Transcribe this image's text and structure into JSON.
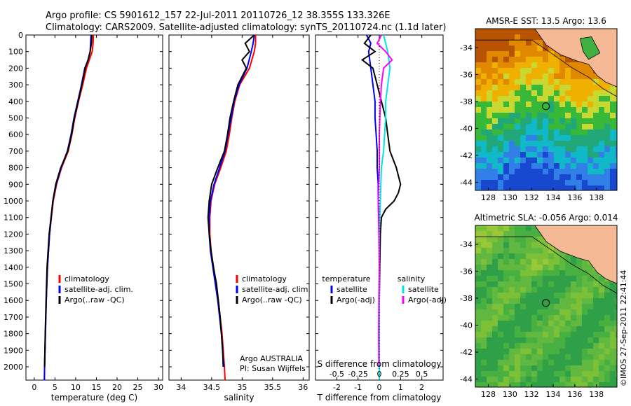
{
  "header": {
    "line1": "Argo profile: CS 5901612_157 22-Jul-2011 20110726_12 38.355S 133.326E",
    "line2": "Climatology: CARS2009. Satellite-adjusted climatology: synTS_20110724.nc (1.1d later)"
  },
  "side_label": "©IMOS 27-Sep-2011 22:41:44",
  "colors": {
    "climatology": "#ff0000",
    "satellite": "#0000ff",
    "argo": "#000000",
    "sat_sal": "#00e5e5",
    "argo_sal": "#ff00ff",
    "land": "#f5b995"
  },
  "chart_data": [
    {
      "type": "line",
      "id": "temperature",
      "xlabel": "temperature (deg C)",
      "xlim": [
        -2,
        31
      ],
      "ylim": [
        2080,
        0
      ],
      "xticks": [
        "0",
        "5",
        "10",
        "15",
        "20",
        "25",
        "30"
      ],
      "xtick_values": [
        0,
        5,
        10,
        15,
        20,
        25,
        30
      ],
      "yticks": [
        "0",
        "100",
        "200",
        "300",
        "400",
        "500",
        "600",
        "700",
        "800",
        "900",
        "1000",
        "1100",
        "1200",
        "1300",
        "1400",
        "1500",
        "1600",
        "1700",
        "1800",
        "1900",
        "2000"
      ],
      "ytick_values": [
        0,
        100,
        200,
        300,
        400,
        500,
        600,
        700,
        800,
        900,
        1000,
        1100,
        1200,
        1300,
        1400,
        1500,
        1600,
        1700,
        1800,
        1900,
        2000
      ],
      "legend": [
        "climatology",
        "satellite-adj. clim.",
        "Argo(..raw -QC)"
      ],
      "series": [
        {
          "name": "climatology",
          "color_key": "climatology",
          "depth": [
            0,
            50,
            100,
            150,
            200,
            300,
            400,
            500,
            600,
            700,
            800,
            900,
            1000,
            1200,
            1400,
            1600,
            1800,
            2000,
            2080
          ],
          "values": [
            14.3,
            14.2,
            14.0,
            13.3,
            12.6,
            11.7,
            10.7,
            9.8,
            9.1,
            8.2,
            6.6,
            5.4,
            4.6,
            3.7,
            3.2,
            2.9,
            2.7,
            2.5,
            2.45
          ]
        },
        {
          "name": "satellite-adj. clim.",
          "color_key": "satellite",
          "depth": [
            0,
            50,
            100,
            150,
            200,
            300,
            400,
            500,
            600,
            700,
            800,
            900,
            1000,
            1200,
            1400,
            1600,
            1800,
            2000,
            2080
          ],
          "values": [
            13.7,
            13.6,
            13.5,
            13.0,
            12.2,
            11.4,
            10.5,
            9.6,
            8.9,
            8.0,
            6.5,
            5.3,
            4.5,
            3.7,
            3.2,
            2.9,
            2.7,
            2.5,
            2.45
          ]
        },
        {
          "name": "Argo(..raw -QC)",
          "color_key": "argo",
          "depth": [
            0,
            50,
            100,
            150,
            200,
            300,
            400,
            500,
            600,
            700,
            800,
            900,
            1000,
            1200,
            1400,
            1600,
            1800,
            2000
          ],
          "values": [
            13.9,
            13.8,
            13.5,
            13.0,
            12.3,
            11.5,
            10.6,
            9.7,
            9.0,
            8.1,
            6.4,
            5.2,
            4.5,
            3.6,
            3.1,
            2.85,
            2.65,
            2.5
          ]
        }
      ]
    },
    {
      "type": "line",
      "id": "salinity",
      "xlabel": "salinity",
      "xlim": [
        33.8,
        36.1
      ],
      "ylim": [
        2080,
        0
      ],
      "xticks": [
        "34",
        "34.5",
        "35",
        "35.5",
        "36"
      ],
      "xtick_values": [
        34,
        34.5,
        35,
        35.5,
        36
      ],
      "legend": [
        "climatology",
        "satellite-adj. clim.",
        "Argo(..raw -QC)"
      ],
      "annotation": [
        "Argo AUSTRALIA",
        "PI: Susan Wijffels"
      ],
      "series": [
        {
          "name": "climatology",
          "color_key": "climatology",
          "depth": [
            0,
            50,
            100,
            200,
            300,
            400,
            500,
            600,
            700,
            800,
            900,
            1000,
            1100,
            1200,
            1300,
            1400,
            1500,
            1600,
            1700,
            1800,
            1900,
            2000,
            2080
          ],
          "values": [
            35.22,
            35.22,
            35.2,
            35.12,
            34.96,
            34.88,
            34.83,
            34.79,
            34.74,
            34.65,
            34.55,
            34.49,
            34.47,
            34.47,
            34.49,
            34.53,
            34.57,
            34.61,
            34.64,
            34.67,
            34.69,
            34.71,
            34.72
          ]
        },
        {
          "name": "satellite-adj. clim.",
          "color_key": "satellite",
          "depth": [
            0,
            50,
            100,
            200,
            300,
            400,
            500,
            600,
            700,
            800,
            900,
            1000,
            1100,
            1200,
            1300,
            1400,
            1500,
            1600,
            1700,
            1800,
            1900,
            2000
          ],
          "values": [
            35.2,
            35.18,
            35.15,
            35.08,
            34.95,
            34.87,
            34.82,
            34.77,
            34.72,
            34.63,
            34.54,
            34.48,
            34.46,
            34.46,
            34.48,
            34.52,
            34.56,
            34.6,
            34.63,
            34.66,
            34.68,
            34.7
          ]
        },
        {
          "name": "Argo(..raw -QC)",
          "color_key": "argo",
          "depth": [
            0,
            50,
            100,
            150,
            200,
            300,
            400,
            500,
            600,
            700,
            800,
            900,
            1000,
            1100,
            1200,
            1300,
            1400,
            1500,
            1600,
            1700,
            1800,
            1900,
            2000
          ],
          "values": [
            35.2,
            35.05,
            35.12,
            35.0,
            35.07,
            34.93,
            34.86,
            34.8,
            34.76,
            34.71,
            34.6,
            34.5,
            34.46,
            34.44,
            34.46,
            34.49,
            34.53,
            34.58,
            34.61,
            34.64,
            34.66,
            34.68,
            34.69
          ]
        }
      ]
    },
    {
      "type": "line",
      "id": "difference",
      "xlabel": "T difference from climatology",
      "xlabel_top": "S difference from climatology",
      "xlim": [
        -3,
        3
      ],
      "ylim": [
        2080,
        0
      ],
      "xticks": [
        "-2",
        "-1",
        "0",
        "1",
        "2"
      ],
      "xtick_values": [
        -2,
        -1,
        0,
        1,
        2
      ],
      "xticks_top": [
        "-0.5",
        "-0.25",
        "0",
        "0.25",
        "0.5"
      ],
      "xticks_top_positions": [
        -2,
        -1,
        0,
        1,
        2
      ],
      "legend_left": [
        "temperature",
        "satellite",
        "Argo(-adj)"
      ],
      "legend_right": [
        "salinity",
        "satellite",
        "Argo(-adj)"
      ],
      "series": [
        {
          "name": "satellite",
          "color_key": "satellite",
          "depth": [
            0,
            50,
            100,
            200,
            300,
            400,
            500,
            600,
            700,
            800,
            900,
            1000,
            1200,
            1400,
            1600,
            1800,
            2000,
            2080
          ],
          "values": [
            -0.6,
            -0.4,
            -0.5,
            -0.4,
            -0.3,
            -0.2,
            -0.2,
            -0.15,
            -0.1,
            -0.1,
            -0.05,
            -0.05,
            0,
            0,
            0,
            0,
            0,
            0
          ]
        },
        {
          "name": "Argo(-adj)",
          "color_key": "argo",
          "depth": [
            0,
            50,
            100,
            150,
            200,
            300,
            400,
            500,
            600,
            700,
            800,
            900,
            950,
            1000,
            1050,
            1100,
            1200,
            1400,
            1600,
            1800,
            2000
          ],
          "values": [
            -0.4,
            -0.7,
            -0.2,
            -0.8,
            -0.3,
            -0.1,
            0.1,
            0.3,
            0.4,
            0.5,
            0.8,
            1.0,
            0.9,
            0.7,
            0.3,
            0.1,
            0.05,
            0.02,
            0,
            0,
            0
          ]
        },
        {
          "name": "satellite",
          "color_key": "sat_sal",
          "depth": [
            0,
            50,
            100,
            200,
            300,
            400,
            500,
            600,
            700,
            800,
            1000,
            1200,
            1400,
            1600,
            1800,
            2000,
            2080
          ],
          "values": [
            0.2,
            0.3,
            0.4,
            0.5,
            0.4,
            0.3,
            0.3,
            0.25,
            0.2,
            0.1,
            0.05,
            0,
            0,
            0,
            0,
            0,
            0
          ]
        },
        {
          "name": "Argo(-adj)",
          "color_key": "argo_sal",
          "depth": [
            0,
            50,
            100,
            150,
            200,
            300,
            400,
            600,
            800,
            1000,
            1200,
            1400,
            1600,
            1800,
            2000
          ],
          "values": [
            0.1,
            -0.1,
            0.3,
            0.6,
            0.2,
            0.1,
            0.05,
            0,
            0,
            -0.05,
            -0.02,
            0,
            -0.02,
            -0.03,
            -0.02
          ]
        }
      ]
    },
    {
      "type": "heatmap",
      "id": "sst_map",
      "title": "AMSR-E SST: 13.5 Argo: 13.6",
      "xticks": [
        "128",
        "130",
        "132",
        "134",
        "136",
        "138"
      ],
      "xtick_values": [
        128,
        130,
        132,
        134,
        136,
        138
      ],
      "yticks": [
        "-34",
        "-36",
        "-38",
        "-40",
        "-42",
        "-44"
      ],
      "ytick_values": [
        -34,
        -36,
        -38,
        -40,
        -42,
        -44
      ],
      "xlim": [
        126.8,
        139.9
      ],
      "ylim": [
        -44.6,
        -32.6
      ],
      "marker": [
        133.326,
        -38.355
      ],
      "colors": [
        "#b85400",
        "#e08800",
        "#f0b000",
        "#c8d830",
        "#38b838",
        "#20a878",
        "#10b8c8",
        "#3080e8",
        "#1848d0"
      ]
    },
    {
      "type": "heatmap",
      "id": "sla_map",
      "title": "Altimetric SLA: -0.056 Argo: 0.014",
      "xticks": [
        "128",
        "130",
        "132",
        "134",
        "136",
        "138"
      ],
      "xtick_values": [
        128,
        130,
        132,
        134,
        136,
        138
      ],
      "yticks": [
        "-34",
        "-36",
        "-38",
        "-40",
        "-42",
        "-44"
      ],
      "ytick_values": [
        -34,
        -36,
        -38,
        -40,
        -42,
        -44
      ],
      "xlim": [
        126.8,
        139.9
      ],
      "ylim": [
        -44.6,
        -32.6
      ],
      "marker": [
        133.326,
        -38.355
      ],
      "colors": [
        "#30a048",
        "#48b040",
        "#60b840",
        "#7cc038",
        "#98c838",
        "#c0d040",
        "#e0d848"
      ]
    }
  ]
}
